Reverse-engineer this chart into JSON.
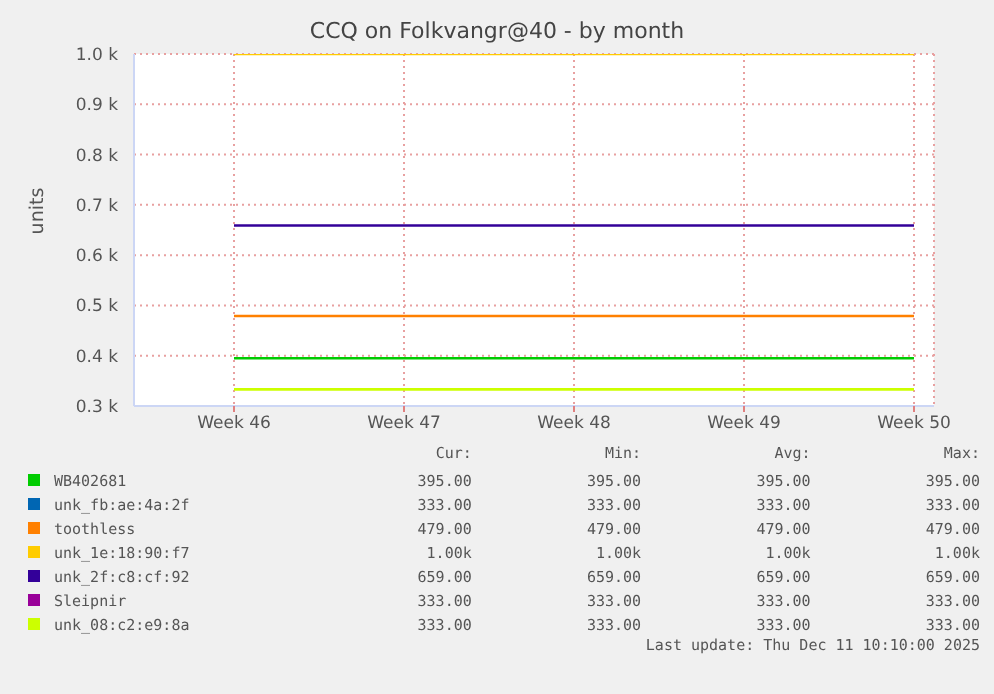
{
  "chart_data": {
    "type": "line",
    "title": "CCQ on Folkvangr@40 - by month",
    "ylabel": "units",
    "categories": [
      "Week 46",
      "Week 47",
      "Week 48",
      "Week 49",
      "Week 50"
    ],
    "ylim": [
      300,
      1000
    ],
    "yticks": [
      {
        "value": 300,
        "label": "0.3 k"
      },
      {
        "value": 400,
        "label": "0.4 k"
      },
      {
        "value": 500,
        "label": "0.5 k"
      },
      {
        "value": 600,
        "label": "0.6 k"
      },
      {
        "value": 700,
        "label": "0.7 k"
      },
      {
        "value": 800,
        "label": "0.8 k"
      },
      {
        "value": 900,
        "label": "0.9 k"
      },
      {
        "value": 1000,
        "label": "1.0 k"
      }
    ],
    "grid": true,
    "legend": "bottom",
    "marker": "none",
    "line_style": "solid",
    "series": [
      {
        "name": "WB402681",
        "color": "#00cc00",
        "values": [
          395,
          395,
          395,
          395,
          395
        ]
      },
      {
        "name": "unk_fb:ae:4a:2f",
        "color": "#0066b3",
        "values": [
          null,
          null,
          null,
          null,
          null
        ]
      },
      {
        "name": "toothless",
        "color": "#ff8000",
        "values": [
          479,
          479,
          479,
          479,
          479
        ]
      },
      {
        "name": "unk_1e:18:90:f7",
        "color": "#ffcc00",
        "values": [
          1000,
          1000,
          1000,
          1000,
          1000
        ]
      },
      {
        "name": "unk_2f:c8:cf:92",
        "color": "#330099",
        "values": [
          659,
          659,
          659,
          659,
          659
        ]
      },
      {
        "name": "Sleipnir",
        "color": "#990099",
        "values": [
          null,
          null,
          null,
          null,
          null
        ]
      },
      {
        "name": "unk_08:c2:e9:8a",
        "color": "#ccff00",
        "values": [
          333,
          333,
          333,
          333,
          333
        ]
      }
    ],
    "annotations": [
      "Cur:",
      "Min:",
      "Avg:",
      "Max:",
      "395.00",
      "395.00",
      "395.00",
      "395.00",
      "333.00",
      "333.00",
      "333.00",
      "333.00",
      "479.00",
      "479.00",
      "479.00",
      "479.00",
      "1.00k",
      "1.00k",
      "1.00k",
      "1.00k",
      "659.00",
      "659.00",
      "659.00",
      "659.00",
      "333.00",
      "333.00",
      "333.00",
      "333.00",
      "333.00",
      "333.00",
      "333.00",
      "333.00",
      "Last update: Thu Dec 11 10:10:00 2025"
    ]
  }
}
